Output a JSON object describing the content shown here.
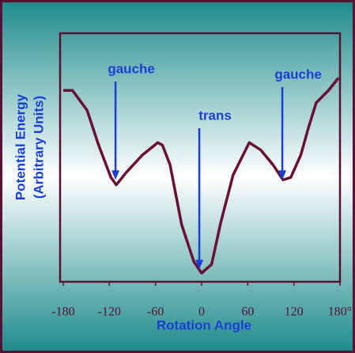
{
  "chart_data": {
    "type": "line",
    "xlabel": "Rotation Angle",
    "ylabel": [
      "Potential Energy",
      "(Arbitrary Units)"
    ],
    "x": [
      -180,
      -168,
      -149,
      -134,
      -118,
      -111,
      -98,
      -77,
      -57,
      -51,
      -41,
      -26,
      -10,
      0,
      13,
      25,
      41,
      62,
      77,
      93,
      106,
      116,
      129,
      139,
      149,
      165,
      178
    ],
    "values": [
      7.7,
      7.7,
      6.9,
      5.5,
      4.2,
      3.9,
      4.4,
      5.1,
      5.6,
      5.5,
      4.7,
      2.3,
      0.8,
      0.35,
      0.7,
      2.4,
      4.3,
      5.6,
      5.3,
      4.7,
      4.1,
      4.2,
      5.1,
      6.2,
      7.2,
      7.7,
      8.2
    ],
    "color": "#6b1035",
    "xlim": [
      -180,
      180
    ],
    "ylim": [
      0,
      10
    ],
    "xticks": [
      -180,
      -120,
      -60,
      0,
      60,
      120,
      {
        "value": 180,
        "label": "180°"
      }
    ],
    "annotations": [
      {
        "text": "gauche",
        "x": -112,
        "y": 4.1
      },
      {
        "text": "trans",
        "x": -3,
        "y": 0.5
      },
      {
        "text": "gauche",
        "x": 105,
        "y": 4.1
      }
    ]
  }
}
